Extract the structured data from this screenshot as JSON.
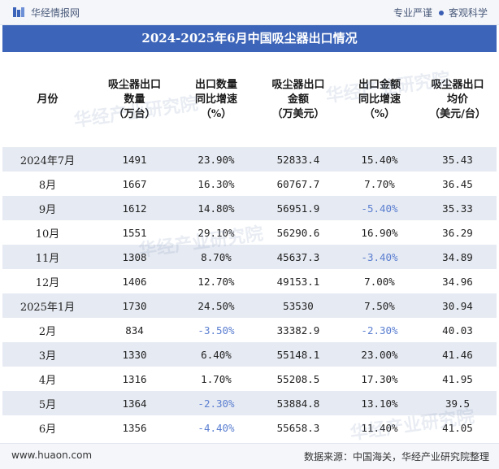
{
  "header": {
    "brand": "华经情报网",
    "slogan_left": "专业严谨",
    "slogan_right": "客观科学"
  },
  "title": "2024-2025年6月中国吸尘器出口情况",
  "columns": [
    [
      "月份"
    ],
    [
      "吸尘器出口",
      "数量",
      "（万台）"
    ],
    [
      "出口数量",
      "同比增速",
      "（%）"
    ],
    [
      "吸尘器出口",
      "金额",
      "（万美元）"
    ],
    [
      "出口金额",
      "同比增速",
      "（%）"
    ],
    [
      "吸尘器出口",
      "均价",
      "（美元/台）"
    ]
  ],
  "rows": [
    {
      "month": "2024年7月",
      "qty": "1491",
      "qty_yoy": "23.90%",
      "amount": "52833.4",
      "amount_yoy": "15.40%",
      "price": "35.43"
    },
    {
      "month": "8月",
      "qty": "1667",
      "qty_yoy": "16.30%",
      "amount": "60767.7",
      "amount_yoy": "7.70%",
      "price": "36.45"
    },
    {
      "month": "9月",
      "qty": "1612",
      "qty_yoy": "14.80%",
      "amount": "56951.9",
      "amount_yoy": "-5.40%",
      "price": "35.33"
    },
    {
      "month": "10月",
      "qty": "1551",
      "qty_yoy": "29.10%",
      "amount": "56290.6",
      "amount_yoy": "16.90%",
      "price": "36.29"
    },
    {
      "month": "11月",
      "qty": "1308",
      "qty_yoy": "8.70%",
      "amount": "45637.3",
      "amount_yoy": "-3.40%",
      "price": "34.89"
    },
    {
      "month": "12月",
      "qty": "1406",
      "qty_yoy": "12.70%",
      "amount": "49153.1",
      "amount_yoy": "7.00%",
      "price": "34.96"
    },
    {
      "month": "2025年1月",
      "qty": "1730",
      "qty_yoy": "24.50%",
      "amount": "53530",
      "amount_yoy": "7.50%",
      "price": "30.94"
    },
    {
      "month": "2月",
      "qty": "834",
      "qty_yoy": "-3.50%",
      "amount": "33382.9",
      "amount_yoy": "-2.30%",
      "price": "40.03"
    },
    {
      "month": "3月",
      "qty": "1330",
      "qty_yoy": "6.40%",
      "amount": "55148.1",
      "amount_yoy": "23.00%",
      "price": "41.46"
    },
    {
      "month": "4月",
      "qty": "1316",
      "qty_yoy": "1.70%",
      "amount": "55208.5",
      "amount_yoy": "17.30%",
      "price": "41.95"
    },
    {
      "month": "5月",
      "qty": "1364",
      "qty_yoy": "-2.30%",
      "amount": "53884.8",
      "amount_yoy": "13.10%",
      "price": "39.5"
    },
    {
      "month": "6月",
      "qty": "1356",
      "qty_yoy": "-4.40%",
      "amount": "55658.3",
      "amount_yoy": "11.40%",
      "price": "41.05"
    }
  ],
  "footer": {
    "url": "www.huaon.com",
    "source": "数据来源：中国海关，华经产业研究院整理"
  },
  "watermark": "华经产业研究院",
  "colors": {
    "title_bg": "#3c64b8",
    "stripe": "#e6eaf2",
    "negative": "#5b7fd1"
  }
}
